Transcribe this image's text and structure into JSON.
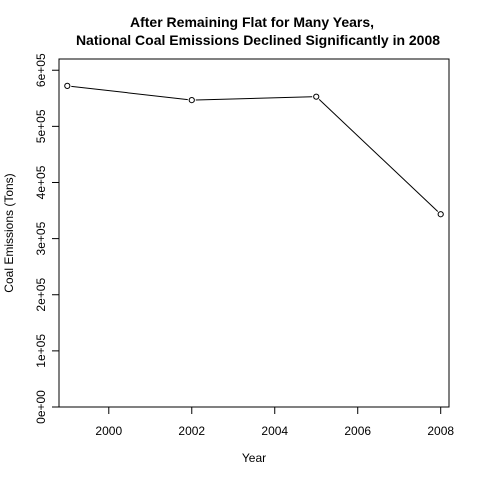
{
  "chart_data": {
    "type": "line",
    "title_line1": "After Remaining Flat for Many Years,",
    "title_line2": "National Coal Emissions Declined Significantly in 2008",
    "xlabel": "Year",
    "ylabel": "Coal Emissions (Tons)",
    "x": [
      1999,
      2002,
      2005,
      2008
    ],
    "y": [
      572126,
      546789,
      552881,
      343432
    ],
    "xlim": [
      1998.8,
      2008.2
    ],
    "ylim": [
      0,
      620000
    ],
    "x_ticks": [
      2000,
      2002,
      2004,
      2006,
      2008
    ],
    "x_tick_labels": [
      "2000",
      "2002",
      "2004",
      "2006",
      "2008"
    ],
    "y_ticks": [
      0,
      100000,
      200000,
      300000,
      400000,
      500000,
      600000
    ],
    "y_tick_labels": [
      "0e+00",
      "1e+05",
      "2e+05",
      "3e+05",
      "4e+05",
      "5e+05",
      "6e+05"
    ],
    "line_color": "#000000",
    "marker": "open-circle",
    "grid": false,
    "legend": "none"
  }
}
